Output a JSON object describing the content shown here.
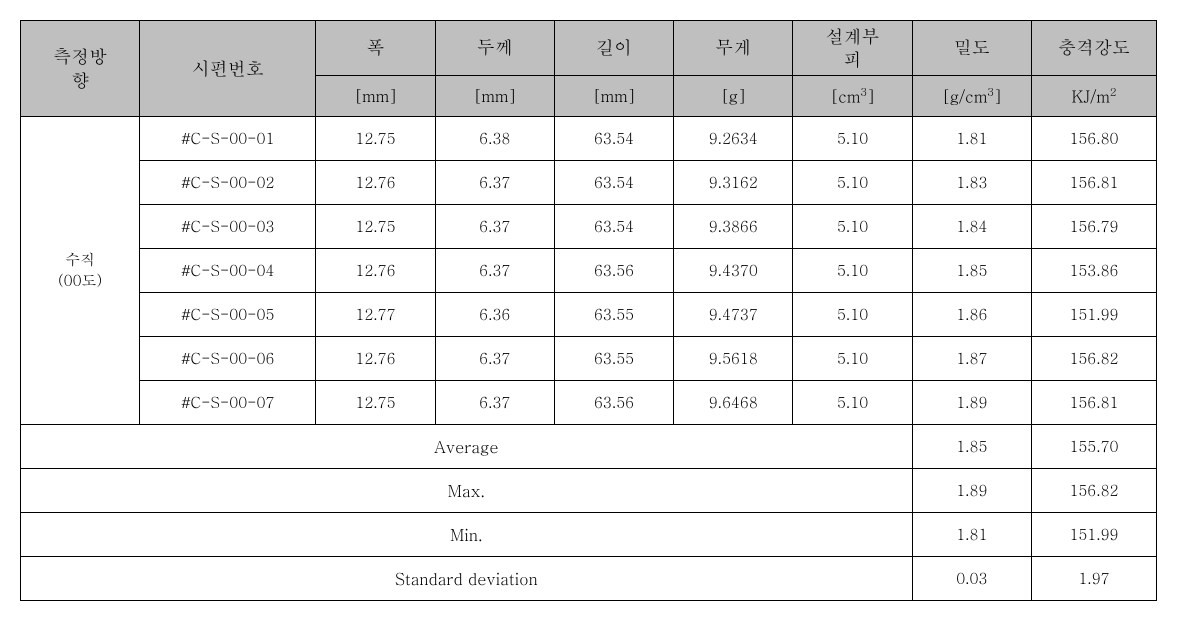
{
  "table": {
    "colgroup_pct": [
      10.5,
      15.5,
      10.5,
      10.5,
      10.5,
      10.5,
      10.5,
      10.5,
      11
    ],
    "header": {
      "direction": "측정방\n향",
      "specimen": "시편번호",
      "cols": [
        {
          "label": "폭",
          "unit": "[mm]"
        },
        {
          "label": "두께",
          "unit": "[mm]"
        },
        {
          "label": "길이",
          "unit": "[mm]"
        },
        {
          "label": "무게",
          "unit": "[g]"
        },
        {
          "label": "설계부\n피",
          "unit_html": "[cm<sup>3</sup>]"
        },
        {
          "label": "밀도",
          "unit_html": "[g/cm<sup>3</sup>]"
        },
        {
          "label": "충격강도",
          "unit_html": "KJ/m<sup>2</sup>"
        }
      ]
    },
    "direction_value": "수직\n(00도)",
    "rows": [
      {
        "id": "#C-S-00-01",
        "w": "12.75",
        "t": "6.38",
        "l": "63.54",
        "m": "9.2634",
        "v": "5.10",
        "d": "1.81",
        "s": "156.80"
      },
      {
        "id": "#C-S-00-02",
        "w": "12.76",
        "t": "6.37",
        "l": "63.54",
        "m": "9.3162",
        "v": "5.10",
        "d": "1.83",
        "s": "156.81"
      },
      {
        "id": "#C-S-00-03",
        "w": "12.75",
        "t": "6.37",
        "l": "63.54",
        "m": "9.3866",
        "v": "5.10",
        "d": "1.84",
        "s": "156.79"
      },
      {
        "id": "#C-S-00-04",
        "w": "12.76",
        "t": "6.37",
        "l": "63.56",
        "m": "9.4370",
        "v": "5.10",
        "d": "1.85",
        "s": "153.86"
      },
      {
        "id": "#C-S-00-05",
        "w": "12.77",
        "t": "6.36",
        "l": "63.55",
        "m": "9.4737",
        "v": "5.10",
        "d": "1.86",
        "s": "151.99"
      },
      {
        "id": "#C-S-00-06",
        "w": "12.76",
        "t": "6.37",
        "l": "63.55",
        "m": "9.5618",
        "v": "5.10",
        "d": "1.87",
        "s": "156.82"
      },
      {
        "id": "#C-S-00-07",
        "w": "12.75",
        "t": "6.37",
        "l": "63.56",
        "m": "9.6468",
        "v": "5.10",
        "d": "1.89",
        "s": "156.81"
      }
    ],
    "stats": [
      {
        "label": "Average",
        "d": "1.85",
        "s": "155.70"
      },
      {
        "label": "Max.",
        "d": "1.89",
        "s": "156.82"
      },
      {
        "label": "Min.",
        "d": "1.81",
        "s": "151.99"
      },
      {
        "label": "Standard deviation",
        "d": "0.03",
        "s": "1.97"
      }
    ]
  },
  "colors": {
    "header_bg": "#bfbfbf",
    "body_bg": "#ffffff",
    "border": "#000000"
  },
  "typography": {
    "header_fontsize_pt": 14,
    "unit_fontsize_pt": 12,
    "body_fontsize_pt": 11
  }
}
